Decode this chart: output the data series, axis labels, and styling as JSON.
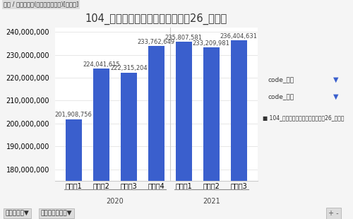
{
  "title": "104_全産業（除く金融保険業）－26_全規模",
  "header_label": "合計 / 現金・預金(当期末流動資産)[百万円]",
  "bar_color": "#3a5fcd",
  "categories": [
    "四半期1",
    "四半期2",
    "四半期3",
    "四半期4",
    "四半期1",
    "四半期2",
    "四半期3"
  ],
  "year_groups": [
    {
      "year": "2020",
      "indices": [
        0,
        1,
        2,
        3
      ]
    },
    {
      "year": "2021",
      "indices": [
        4,
        5,
        6
      ]
    }
  ],
  "values": [
    201908756,
    224041615,
    222315204,
    233762649,
    235807581,
    233209981,
    236404631
  ],
  "value_labels": [
    "201,908,756",
    "224,041,615",
    "222,315,204",
    "233,762,649",
    "235,807,581",
    "233,209,981",
    "236,404,631"
  ],
  "ylim": [
    175000000,
    242000000
  ],
  "yticks": [
    180000000,
    190000000,
    200000000,
    210000000,
    220000000,
    230000000,
    240000000
  ],
  "legend_filter1": "code_業種",
  "legend_filter2": "code_規模",
  "legend_series": "■ 104_全産業（除く金融保険業）－26_全規模",
  "legend_series_color": "#3a5fcd",
  "bg_color": "#f5f5f5",
  "plot_bg_color": "#ffffff",
  "title_fontsize": 10.5,
  "tick_fontsize": 7,
  "label_fontsize": 6,
  "footer_label1": "日付（年）▼",
  "footer_label2": "日付（四半期）▼",
  "filter_icon": "▼",
  "plus_minus": "+ -"
}
